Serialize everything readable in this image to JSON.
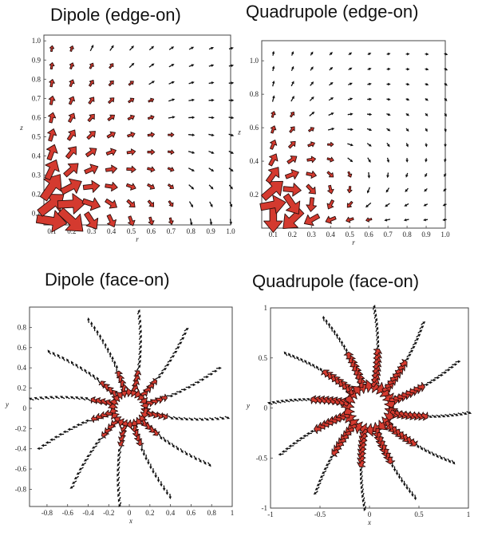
{
  "accent_color": "#d43a2f",
  "charts": [
    {
      "title": "Dipole (edge-on)",
      "chart_data": {
        "type": "vector-field",
        "field": "dipole-edge",
        "xlabel": "r",
        "ylabel": "z",
        "xlim": [
          0.06,
          1.0
        ],
        "ylim": [
          0.04,
          1.03
        ],
        "xticks": [
          "0.1",
          "0.2",
          "0.3",
          "0.4",
          "0.5",
          "0.6",
          "0.7",
          "0.8",
          "0.9",
          "1.0"
        ],
        "yticks": [
          "0.1",
          "0.2",
          "0.3",
          "0.4",
          "0.5",
          "0.6",
          "0.7",
          "0.8",
          "0.9",
          "1.0"
        ],
        "grid_x": [
          0.1,
          0.2,
          0.3,
          0.4,
          0.5,
          0.6,
          0.7,
          0.8,
          0.9,
          1.0
        ],
        "grid_y": [
          0.06,
          0.15,
          0.24,
          0.33,
          0.42,
          0.51,
          0.6,
          0.69,
          0.78,
          0.87,
          0.96
        ]
      }
    },
    {
      "title": "Quadrupole (edge-on)",
      "chart_data": {
        "type": "vector-field",
        "field": "quad-edge",
        "xlabel": "r",
        "ylabel": "z",
        "xlim": [
          0.04,
          1.0
        ],
        "ylim": [
          0.0,
          1.12
        ],
        "xticks": [
          "0.1",
          "0.2",
          "0.3",
          "0.4",
          "0.5",
          "0.6",
          "0.7",
          "0.8",
          "0.9",
          "1.0"
        ],
        "yticks": [
          "0.2",
          "0.4",
          "0.6",
          "0.8",
          "1.0"
        ],
        "grid_x": [
          0.1,
          0.2,
          0.3,
          0.4,
          0.5,
          0.6,
          0.7,
          0.8,
          0.9,
          1.0
        ],
        "grid_y": [
          0.05,
          0.14,
          0.23,
          0.32,
          0.41,
          0.5,
          0.59,
          0.68,
          0.77,
          0.86,
          0.95,
          1.04
        ]
      }
    },
    {
      "title": "Dipole (face-on)",
      "chart_data": {
        "type": "vector-field",
        "field": "dipole-face",
        "xlabel": "x",
        "ylabel": "y",
        "xlim": [
          -0.97,
          1.0
        ],
        "ylim": [
          -0.97,
          1.0
        ],
        "xticks": [
          "-0.8",
          "-0.6",
          "-0.4",
          "-0.2",
          "0",
          "0.2",
          "0.4",
          "0.6",
          "0.8",
          "1"
        ],
        "yticks": [
          "0.8",
          "0.6",
          "0.4",
          "0.2",
          "0",
          "-0.2",
          "-0.4",
          "-0.6",
          "-0.8"
        ],
        "spokes": 12,
        "ring_radius": 0.16,
        "spoke_length": 0.95
      }
    },
    {
      "title": "Quadrupole (face-on)",
      "chart_data": {
        "type": "vector-field",
        "field": "quad-face",
        "xlabel": "x",
        "ylabel": "y",
        "xlim": [
          -1.0,
          1.0
        ],
        "ylim": [
          -1.0,
          1.0
        ],
        "xticks": [
          "-1",
          "-0.5",
          "0",
          "0.5",
          "1"
        ],
        "yticks": [
          "1",
          "0.5",
          "0",
          "-0.5",
          "-1"
        ],
        "spokes": 12,
        "ring_radius": 0.22,
        "spoke_length": 1.0
      }
    }
  ]
}
